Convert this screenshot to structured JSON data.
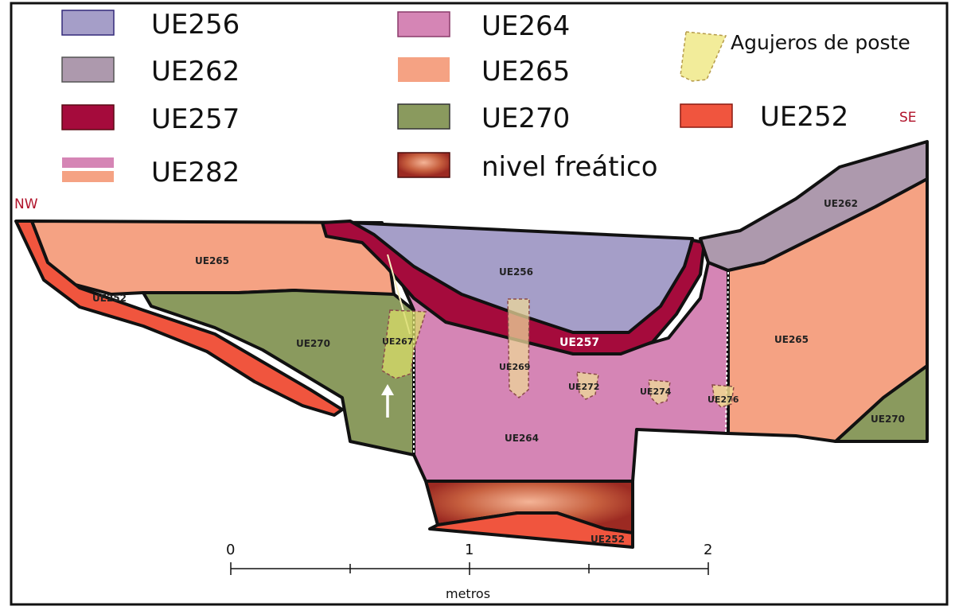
{
  "colors": {
    "UE256": "#a59ec8",
    "UE262": "#ad99ad",
    "UE257": "#a50b3c",
    "UE264": "#d585b5",
    "UE265": "#f5a283",
    "UE270": "#8a9a5e",
    "UE252": "#f0553e",
    "poste": "#f2ec9a",
    "orientation": "#b0122a"
  },
  "legend": {
    "ue256": "UE256",
    "ue262": "UE262",
    "ue257": "UE257",
    "ue282": "UE282",
    "ue264": "UE264",
    "ue265": "UE265",
    "ue270": "UE270",
    "nivel": "nivel freático",
    "agujeros": "Agujeros de poste",
    "ue252": "UE252"
  },
  "orientation": {
    "nw": "NW",
    "se": "SE"
  },
  "labels": {
    "ue265_left": "UE265",
    "ue252_left": "UE252",
    "ue270_left": "UE270",
    "ue267": "UE267",
    "ue256": "UE256",
    "ue257": "UE257",
    "ue269": "UE269",
    "ue272": "UE272",
    "ue274": "UE274",
    "ue276": "UE276",
    "ue264": "UE264",
    "ue262": "UE262",
    "ue265_right": "UE265",
    "ue270_right": "UE270",
    "ue252_bottom": "UE252"
  },
  "scale": {
    "ticks": [
      "0",
      "1",
      "2"
    ],
    "unit": "metros"
  }
}
